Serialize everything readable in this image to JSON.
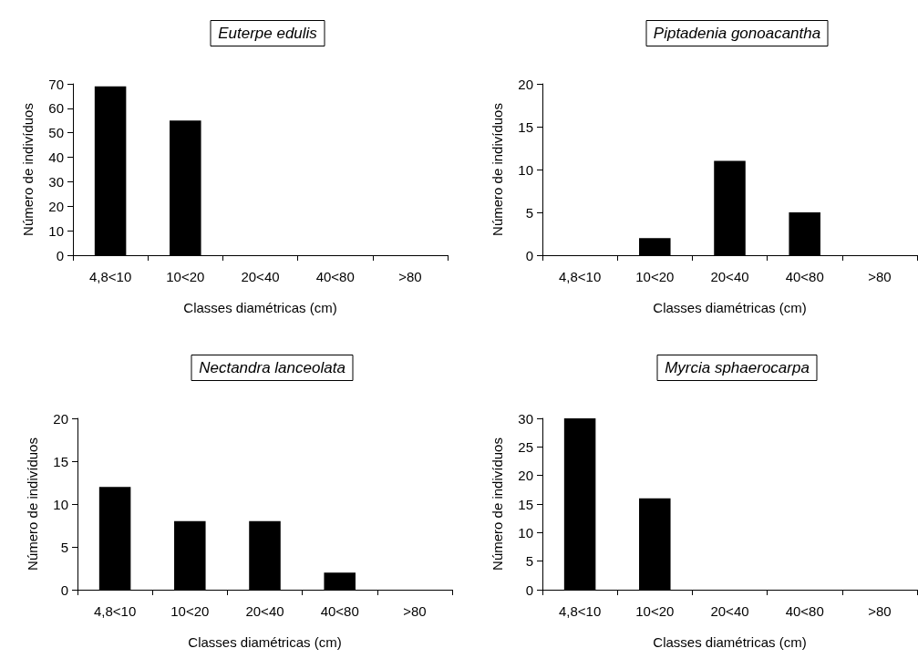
{
  "chart_data": [
    {
      "type": "bar",
      "title": "Euterpe edulis",
      "xlabel": "Classes diamétricas (cm)",
      "ylabel": "Número de indivíduos",
      "categories": [
        "4,8<10",
        "10<20",
        "20<40",
        "40<80",
        ">80"
      ],
      "values": [
        69,
        55,
        0,
        0,
        0
      ],
      "color": "#000000",
      "ylim": [
        0,
        70
      ],
      "yticks": [
        0,
        10,
        20,
        30,
        40,
        50,
        60,
        70
      ]
    },
    {
      "type": "bar",
      "title": "Piptadenia gonoacantha",
      "xlabel": "Classes diamétricas (cm)",
      "ylabel": "Número de indivíduos",
      "categories": [
        "4,8<10",
        "10<20",
        "20<40",
        "40<80",
        ">80"
      ],
      "values": [
        0,
        2,
        11,
        5,
        0
      ],
      "color": "#000000",
      "ylim": [
        0,
        20
      ],
      "yticks": [
        0,
        5,
        10,
        15,
        20
      ]
    },
    {
      "type": "bar",
      "title": "Nectandra lanceolata",
      "xlabel": "Classes diamétricas (cm)",
      "ylabel": "Número de indivíduos",
      "categories": [
        "4,8<10",
        "10<20",
        "20<40",
        "40<80",
        ">80"
      ],
      "values": [
        12,
        8,
        8,
        2,
        0
      ],
      "color": "#000000",
      "ylim": [
        0,
        20
      ],
      "yticks": [
        0,
        5,
        10,
        15,
        20
      ]
    },
    {
      "type": "bar",
      "title": "Myrcia sphaerocarpa",
      "xlabel": "Classes diamétricas (cm)",
      "ylabel": "Número de indivíduos",
      "categories": [
        "4,8<10",
        "10<20",
        "20<40",
        "40<80",
        ">80"
      ],
      "values": [
        30,
        16,
        0,
        0,
        0
      ],
      "color": "#000000",
      "ylim": [
        0,
        30
      ],
      "yticks": [
        0,
        5,
        10,
        15,
        20,
        25,
        30
      ]
    }
  ]
}
